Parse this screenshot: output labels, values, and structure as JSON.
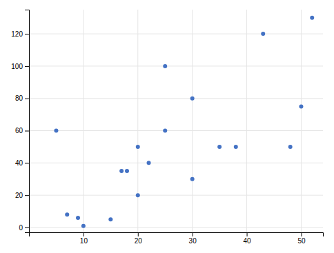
{
  "chart_data": {
    "type": "scatter",
    "x": [
      5,
      7,
      9,
      10,
      15,
      17,
      18,
      20,
      20,
      22,
      25,
      25,
      30,
      30,
      35,
      38,
      43,
      48,
      50,
      52
    ],
    "values": [
      60,
      8,
      6,
      1,
      5,
      35,
      35,
      50,
      20,
      40,
      100,
      60,
      80,
      30,
      50,
      50,
      120,
      50,
      75,
      130
    ],
    "color": "#4472c4",
    "xlim": [
      0,
      54
    ],
    "ylim": [
      -3,
      135
    ],
    "xticks": [
      10,
      20,
      30,
      40,
      50
    ],
    "yticks": [
      0,
      20,
      40,
      60,
      80,
      100,
      120
    ],
    "grid": true
  }
}
